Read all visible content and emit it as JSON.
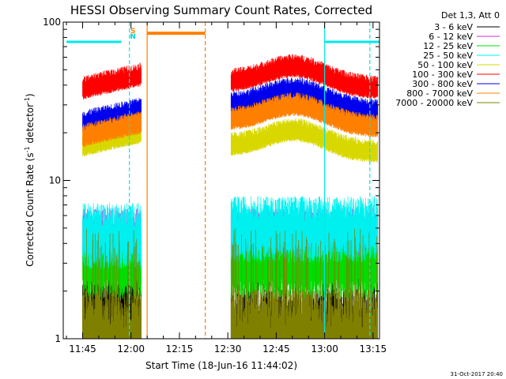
{
  "chart_data": {
    "type": "line",
    "title": "HESSI Observing Summary Count Rates, Corrected",
    "xlabel": "Start Time (18-Jun-16 11:44:02)",
    "ylabel_main": "Corrected Count Rate (s",
    "ylabel_sup1": "-1",
    "ylabel_mid": " detector",
    "ylabel_sup2": "-1",
    "ylabel_end": ")",
    "yscale": "log",
    "ylim": [
      1,
      100
    ],
    "xlim_minutes": [
      -6,
      92
    ],
    "x_ticks": [
      {
        "label": "11:45",
        "minutes": 0
      },
      {
        "label": "12:00",
        "minutes": 15
      },
      {
        "label": "12:15",
        "minutes": 30
      },
      {
        "label": "12:30",
        "minutes": 45
      },
      {
        "label": "12:45",
        "minutes": 60
      },
      {
        "label": "13:00",
        "minutes": 75
      },
      {
        "label": "13:15",
        "minutes": 90
      }
    ],
    "y_ticks": [
      {
        "label": "1",
        "value": 1
      },
      {
        "label": "10",
        "value": 10
      },
      {
        "label": "100",
        "value": 100
      }
    ],
    "legend_header": "Det 1,3, Att 0",
    "legend_position": "top-right",
    "series": [
      {
        "name": "3 - 6 keV",
        "color": "#000000",
        "base": [
          2.0,
          1.6
        ],
        "band": "low"
      },
      {
        "name": "6 - 12 keV",
        "color": "#e020e0",
        "base": [
          4.6,
          4.6
        ],
        "band": "mid"
      },
      {
        "name": "12 - 25 keV",
        "color": "#00dd00",
        "base": [
          3.2,
          3.2
        ],
        "band": "mid"
      },
      {
        "name": "25 - 50 keV",
        "color": "#00f0f0",
        "base": [
          5.0,
          5.5
        ],
        "band": "mid"
      },
      {
        "name": "50 - 100 keV",
        "color": "#d8d800",
        "base": [
          16.5,
          16.5
        ],
        "band": "high"
      },
      {
        "name": "100 - 300 keV",
        "color": "#ff0000",
        "base": [
          38,
          42
        ],
        "band": "high"
      },
      {
        "name": "300 - 800 keV",
        "color": "#0000ee",
        "base": [
          23,
          30
        ],
        "band": "high"
      },
      {
        "name": "800 - 7000 keV",
        "color": "#ff8000",
        "base": [
          19,
          24
        ],
        "band": "high"
      },
      {
        "name": "7000 - 20000 keV",
        "color": "#808000",
        "base": [
          1.6,
          1.6
        ],
        "band": "low"
      }
    ],
    "data_segments_minutes": [
      [
        0,
        18.2
      ],
      [
        46,
        91.5
      ]
    ],
    "flags": [
      {
        "label": "S",
        "color": "#ff8000"
      },
      {
        "label": "N",
        "color": "#00d0d0"
      }
    ],
    "saa_bar": {
      "from": 20,
      "to": 38,
      "value": 85,
      "color": "#ff8000"
    },
    "night_bars": [
      {
        "from": -5,
        "to": 12,
        "value": 75,
        "color": "#00e8e8"
      },
      {
        "from": 75,
        "to": 92,
        "value": 75,
        "color": "#00e8e8"
      }
    ],
    "vertical_markers": [
      {
        "minutes": 14.5,
        "color": "#00e8e8",
        "style": "dashed"
      },
      {
        "minutes": 20,
        "color": "#ff8000",
        "style": "solid"
      },
      {
        "minutes": 38,
        "color": "#ff8000",
        "style": "dashed"
      },
      {
        "minutes": 75,
        "color": "#00e8e8",
        "style": "solid"
      },
      {
        "minutes": 89,
        "color": "#00e8e8",
        "style": "dashed"
      }
    ]
  },
  "timestamp": "31-Oct-2017 20:40"
}
